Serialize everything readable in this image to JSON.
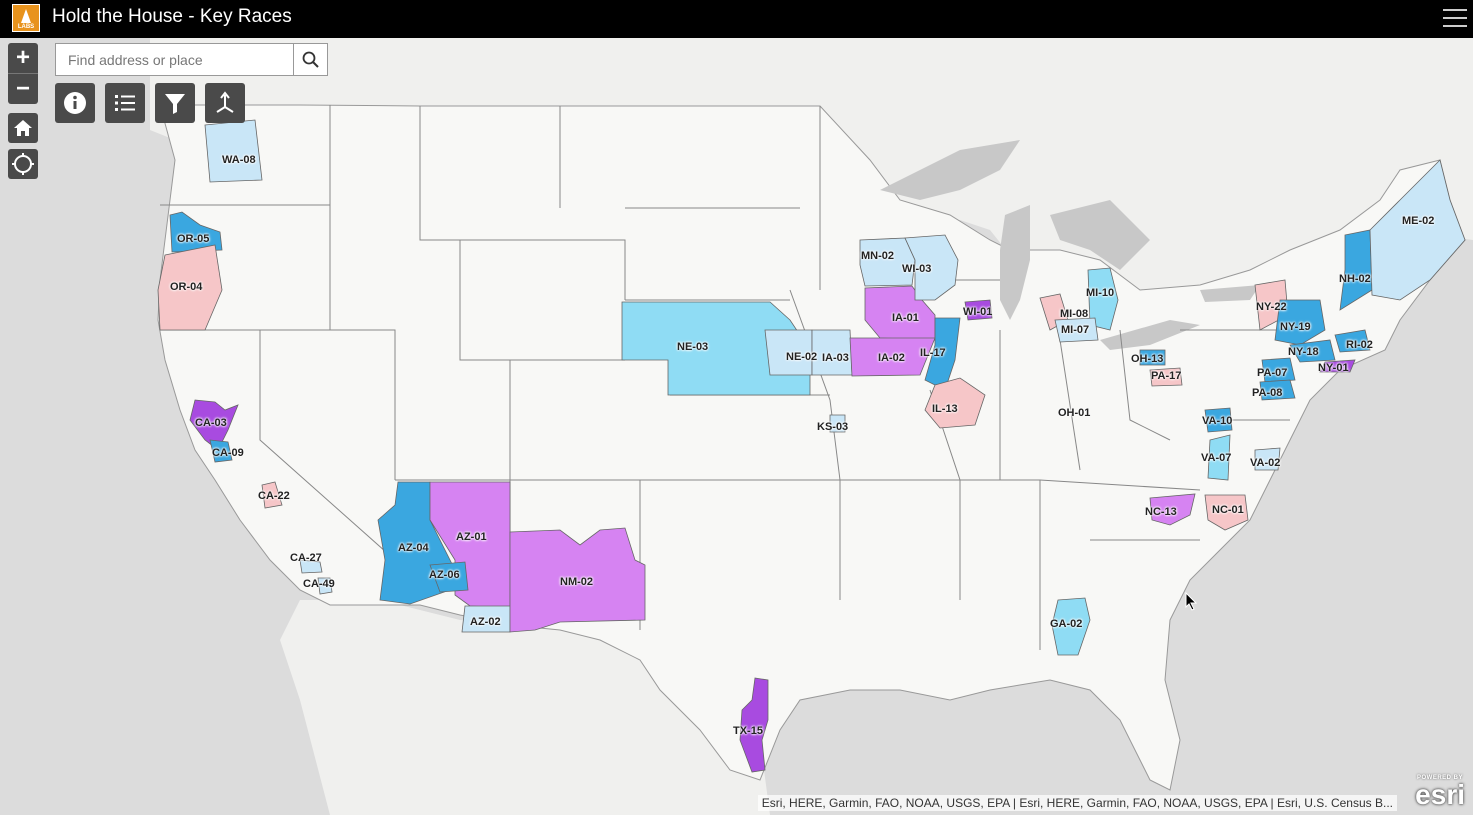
{
  "app": {
    "title": "Hold the House - Key Races",
    "logo_text": "LABS"
  },
  "search": {
    "placeholder": "Find address or place",
    "value": ""
  },
  "controls": {
    "zoom_in": "+",
    "zoom_out": "−",
    "home_icon": "home-icon",
    "locate_icon": "locate-icon",
    "tools": [
      "info-icon",
      "list-icon",
      "filter-icon",
      "share-icon"
    ]
  },
  "colors": {
    "dem_strong": "#3aa7e0",
    "dem_light": "#c9e6f7",
    "lean_dem": "#8fdcf4",
    "rep_light": "#f6c6c8",
    "tossup_purple": "#d683f2",
    "tossup_dark": "#a84be0",
    "water": "#c8c8c8",
    "land": "#f8f8f6"
  },
  "districts": [
    {
      "id": "WA-08",
      "category": "dem_light"
    },
    {
      "id": "OR-05",
      "category": "dem_strong"
    },
    {
      "id": "OR-04",
      "category": "rep_light"
    },
    {
      "id": "CA-03",
      "category": "tossup_dark"
    },
    {
      "id": "CA-09",
      "category": "dem_strong"
    },
    {
      "id": "CA-22",
      "category": "rep_light"
    },
    {
      "id": "CA-27",
      "category": "dem_light"
    },
    {
      "id": "CA-49",
      "category": "dem_light"
    },
    {
      "id": "AZ-04",
      "category": "dem_strong"
    },
    {
      "id": "AZ-01",
      "category": "tossup_purple"
    },
    {
      "id": "AZ-06",
      "category": "dem_strong"
    },
    {
      "id": "AZ-02",
      "category": "dem_light"
    },
    {
      "id": "NM-02",
      "category": "tossup_purple"
    },
    {
      "id": "NE-03",
      "category": "lean_dem"
    },
    {
      "id": "NE-02",
      "category": "dem_light"
    },
    {
      "id": "IA-03",
      "category": "dem_light"
    },
    {
      "id": "IA-01",
      "category": "tossup_purple"
    },
    {
      "id": "IA-02",
      "category": "tossup_purple"
    },
    {
      "id": "IL-17",
      "category": "dem_strong"
    },
    {
      "id": "IL-13",
      "category": "rep_light"
    },
    {
      "id": "KS-03",
      "category": "dem_light"
    },
    {
      "id": "MN-02",
      "category": "dem_light"
    },
    {
      "id": "WI-03",
      "category": "dem_light"
    },
    {
      "id": "WI-01",
      "category": "tossup_dark"
    },
    {
      "id": "MI-10",
      "category": "lean_dem"
    },
    {
      "id": "MI-08",
      "category": "rep_light"
    },
    {
      "id": "MI-07",
      "category": "dem_light"
    },
    {
      "id": "OH-13",
      "category": "dem_strong"
    },
    {
      "id": "OH-01",
      "category": "none"
    },
    {
      "id": "PA-17",
      "category": "rep_light"
    },
    {
      "id": "NY-22",
      "category": "rep_light"
    },
    {
      "id": "NY-19",
      "category": "dem_strong"
    },
    {
      "id": "NY-18",
      "category": "dem_strong"
    },
    {
      "id": "NY-01",
      "category": "tossup_dark"
    },
    {
      "id": "PA-07",
      "category": "dem_strong"
    },
    {
      "id": "PA-08",
      "category": "dem_strong"
    },
    {
      "id": "NH-02",
      "category": "dem_strong"
    },
    {
      "id": "ME-02",
      "category": "dem_light"
    },
    {
      "id": "RI-02",
      "category": "dem_strong"
    },
    {
      "id": "VA-10",
      "category": "dem_strong"
    },
    {
      "id": "VA-07",
      "category": "lean_dem"
    },
    {
      "id": "VA-02",
      "category": "dem_light"
    },
    {
      "id": "NC-13",
      "category": "tossup_purple"
    },
    {
      "id": "NC-01",
      "category": "rep_light"
    },
    {
      "id": "GA-02",
      "category": "lean_dem"
    },
    {
      "id": "TX-15",
      "category": "tossup_dark"
    }
  ],
  "attribution": "Esri, HERE, Garmin, FAO, NOAA, USGS, EPA | Esri, HERE, Garmin, FAO, NOAA, USGS, EPA | Esri, U.S. Census B...",
  "esri_logo": {
    "powered": "POWERED BY",
    "name": "esri"
  }
}
